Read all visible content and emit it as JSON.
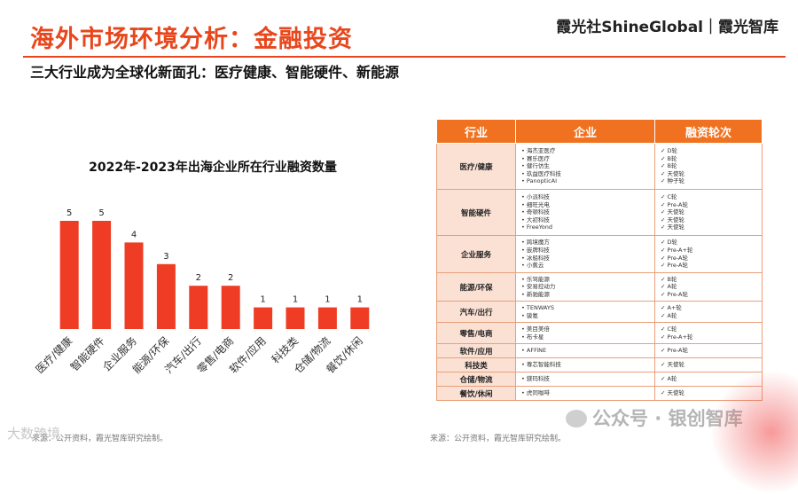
{
  "header": {
    "title": "海外市场环境分析：金融投资",
    "brand": "霞光社ShineGlobal｜霞光智库",
    "subtitle": "三大行业成为全球化新面孔：医疗健康、智能硬件、新能源"
  },
  "chart_data": {
    "type": "bar",
    "title": "2022年-2023年出海企业所在行业融资数量",
    "categories": [
      "医疗/健康",
      "智能硬件",
      "企业服务",
      "能源/环保",
      "汽车/出行",
      "零售/电商",
      "软件/应用",
      "科技类",
      "仓储/物流",
      "餐饮/休闲"
    ],
    "values": [
      5,
      5,
      4,
      3,
      2,
      2,
      1,
      1,
      1,
      1
    ],
    "ylim": [
      0,
      5
    ],
    "color": "#ee3d24",
    "grid": false
  },
  "table": {
    "headers": [
      "行业",
      "企业",
      "融资轮次"
    ],
    "rows": [
      {
        "industry": "医疗/健康",
        "companies": [
          "海杰亚医疗",
          "赛乐医疗",
          "健行仿生",
          "玖益医疗科技",
          "PanopticAI"
        ],
        "rounds": [
          "D轮",
          "B轮",
          "B轮",
          "天使轮",
          "种子轮"
        ]
      },
      {
        "industry": "智能硬件",
        "companies": [
          "小派科技",
          "细旺光电",
          "奇顿科技",
          "大初科技",
          "FreeYond"
        ],
        "rounds": [
          "C轮",
          "Pre-A轮",
          "天使轮",
          "天使轮",
          "天使轮"
        ]
      },
      {
        "industry": "企业服务",
        "companies": [
          "跨境魔方",
          "嵌牌科技",
          "冰船科技",
          "小蕉云"
        ],
        "rounds": [
          "D轮",
          "Pre-A+轮",
          "Pre-A轮",
          "Pre-A轮"
        ]
      },
      {
        "industry": "能源/环保",
        "companies": [
          "乐驾能源",
          "安易控动力",
          "新驰能源"
        ],
        "rounds": [
          "B轮",
          "A轮",
          "Pre-A轮"
        ]
      },
      {
        "industry": "汽车/出行",
        "companies": [
          "TENWAYS",
          "骏氪"
        ],
        "rounds": [
          "A+轮",
          "A轮"
        ]
      },
      {
        "industry": "零售/电商",
        "companies": [
          "美目美倍",
          "布卡星"
        ],
        "rounds": [
          "C轮",
          "Pre-A+轮"
        ]
      },
      {
        "industry": "软件/应用",
        "companies": [
          "AFFiNE"
        ],
        "rounds": [
          "Pre-A轮"
        ]
      },
      {
        "industry": "科技类",
        "companies": [
          "尊芯智能科技"
        ],
        "rounds": [
          "天使轮"
        ]
      },
      {
        "industry": "仓储/物流",
        "companies": [
          "鎂玛科技"
        ],
        "rounds": [
          "A轮"
        ]
      },
      {
        "industry": "餐饮/休闲",
        "companies": [
          "虎同咖啡"
        ],
        "rounds": [
          "天使轮"
        ]
      }
    ]
  },
  "footer": {
    "source_left": "来源：公开资料，霞光智库研究绘制。",
    "source_right": "来源：公开资料，霞光智库研究绘制。",
    "watermark_left": "大数跨境",
    "watermark_right": "公众号 · 银创智库"
  }
}
